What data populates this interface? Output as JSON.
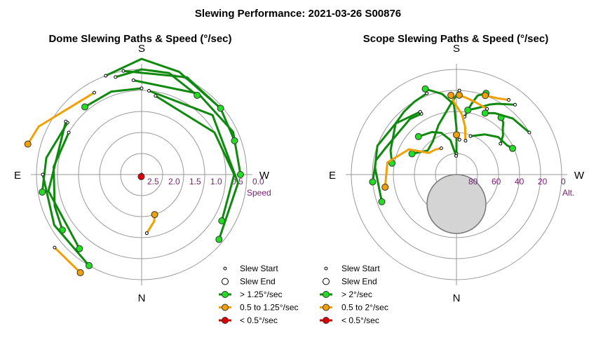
{
  "title": "Slewing Performance: 2021-03-26 S00876",
  "colors": {
    "fast": "#0f8a0f",
    "fast_fill": "#22dd22",
    "mid": "#f0a000",
    "mid_fill": "#f0a000",
    "slow": "#cc0000",
    "slow_fill": "#dd0000",
    "ring": "#999999",
    "tick_label": "#7a1a7a",
    "zenith_fill": "#d4d4d4"
  },
  "chart_data": [
    {
      "type": "polar-paths",
      "title": "Dome Slewing Paths & Speed (°/sec)",
      "compass": {
        "top": "S",
        "bottom": "N",
        "left": "E",
        "right": "W"
      },
      "radial_ticks": [
        "2.5",
        "2.0",
        "1.5",
        "1.0",
        "0.5",
        "0.0"
      ],
      "radial_axis_label": "Speed",
      "legend": [
        {
          "marker": "start",
          "label": "Slew Start"
        },
        {
          "marker": "end",
          "label": "Slew End"
        },
        {
          "marker": "fast",
          "label": "> 1.25°/sec"
        },
        {
          "marker": "mid",
          "label": "0.5 to 1.25°/sec"
        },
        {
          "marker": "slow",
          "label": "< 0.5°/sec"
        }
      ],
      "slews": [
        {
          "speed_class": "fast",
          "points": [
            [
              190,
              2.1
            ],
            [
              240,
              2.0
            ],
            [
              270,
              1.8
            ],
            [
              300,
              1.8
            ]
          ]
        },
        {
          "speed_class": "fast",
          "points": [
            [
              185,
              2.0
            ],
            [
              230,
              1.8
            ],
            [
              275,
              1.7
            ],
            [
              310,
              1.6
            ]
          ]
        },
        {
          "speed_class": "fast",
          "points": [
            [
              175,
              1.75
            ],
            [
              215,
              1.65
            ],
            [
              245,
              1.6
            ],
            [
              270,
              1.65
            ]
          ]
        },
        {
          "speed_class": "fast",
          "points": [
            [
              170,
              1.5
            ],
            [
              205,
              1.45
            ],
            [
              230,
              1.55
            ],
            [
              250,
              1.65
            ]
          ]
        },
        {
          "speed_class": "fast",
          "points": [
            [
              160,
              1.5
            ],
            [
              180,
              1.25
            ],
            [
              200,
              1.4
            ],
            [
              230,
              1.55
            ]
          ]
        },
        {
          "speed_class": "fast",
          "points": [
            [
              165,
              1.6
            ],
            [
              180,
              1.5
            ],
            [
              195,
              1.5
            ],
            [
              215,
              1.7
            ]
          ]
        },
        {
          "speed_class": "fast",
          "points": [
            [
              120,
              2.0
            ],
            [
              95,
              1.9
            ],
            [
              70,
              1.8
            ],
            [
              55,
              1.7
            ]
          ]
        },
        {
          "speed_class": "fast",
          "points": [
            [
              125,
              1.85
            ],
            [
              100,
              1.7
            ],
            [
              80,
              1.6
            ]
          ]
        },
        {
          "speed_class": "fast",
          "points": [
            [
              90,
              1.65
            ],
            [
              60,
              1.6
            ],
            [
              30,
              1.5
            ]
          ]
        },
        {
          "speed_class": "fast",
          "points": [
            [
              125,
              1.8
            ],
            [
              80,
              1.75
            ],
            [
              40,
              1.7
            ]
          ]
        },
        {
          "speed_class": "fast",
          "points": [
            [
              180,
              1.95
            ],
            [
              160,
              1.9
            ],
            [
              140,
              1.9
            ]
          ]
        },
        {
          "speed_class": "mid",
          "points": [
            [
              150,
              1.75
            ],
            [
              115,
              1.3
            ],
            [
              105,
              1.2
            ]
          ]
        },
        {
          "speed_class": "mid",
          "points": [
            [
              50,
              1.3
            ],
            [
              32,
              1.25
            ]
          ]
        },
        {
          "speed_class": "mid",
          "points": [
            [
              355,
              2.6
            ],
            [
              345,
              2.85
            ],
            [
              342,
              3.0
            ]
          ]
        },
        {
          "speed_class": "slow",
          "points": [
            [
              0,
              4.0
            ],
            [
              5,
              3.98
            ],
            [
              10,
              3.95
            ]
          ]
        }
      ]
    },
    {
      "type": "polar-paths",
      "title": "Scope Slewing Paths & Speed (°/sec)",
      "compass": {
        "top": "S",
        "bottom": "N",
        "left": "E",
        "right": "W"
      },
      "radial_ticks": [
        "80",
        "60",
        "40",
        "20",
        "0"
      ],
      "radial_axis_label": "Alt.",
      "legend": [
        {
          "marker": "start",
          "label": "Slew Start"
        },
        {
          "marker": "end",
          "label": "Slew End"
        },
        {
          "marker": "fast",
          "label": "> 2°/sec"
        },
        {
          "marker": "mid",
          "label": "0.5 to 2°/sec"
        },
        {
          "marker": "slow",
          "label": "< 0.5°/sec"
        }
      ],
      "slews": [
        {
          "speed_class": "fast",
          "points": [
            [
              180,
              72
            ],
            [
              180,
              50
            ],
            [
              178,
              30
            ],
            [
              170,
              20
            ],
            [
              160,
              12
            ]
          ]
        },
        {
          "speed_class": "fast",
          "points": [
            [
              182,
              18
            ],
            [
              175,
              30
            ],
            [
              160,
              45
            ],
            [
              145,
              55
            ],
            [
              130,
              58
            ],
            [
              115,
              48
            ]
          ]
        },
        {
          "speed_class": "fast",
          "points": [
            [
              179,
              74
            ],
            [
              170,
              60
            ],
            [
              160,
              52
            ],
            [
              150,
              48
            ],
            [
              135,
              44
            ]
          ]
        },
        {
          "speed_class": "fast",
          "points": [
            [
              150,
              30
            ],
            [
              140,
              28
            ],
            [
              110,
              25
            ],
            [
              100,
              20
            ],
            [
              85,
              18
            ]
          ]
        },
        {
          "speed_class": "fast",
          "points": [
            [
              150,
              28
            ],
            [
              130,
              22
            ],
            [
              110,
              18
            ],
            [
              95,
              20
            ],
            [
              70,
              22
            ]
          ]
        },
        {
          "speed_class": "fast",
          "points": [
            [
              160,
              16
            ],
            [
              150,
              18
            ],
            [
              140,
              20
            ],
            [
              130,
              22
            ],
            [
              110,
              30
            ],
            [
              100,
              34
            ]
          ]
        },
        {
          "speed_class": "fast",
          "points": [
            [
              200,
              55
            ],
            [
              215,
              48
            ],
            [
              228,
              42
            ],
            [
              240,
              40
            ],
            [
              245,
              37
            ]
          ]
        },
        {
          "speed_class": "fast",
          "points": [
            [
              235,
              44
            ],
            [
              230,
              38
            ],
            [
              225,
              34
            ],
            [
              222,
              30
            ],
            [
              218,
              28
            ]
          ]
        },
        {
          "speed_class": "fast",
          "points": [
            [
              188,
              40
            ],
            [
              192,
              28
            ],
            [
              195,
              20
            ],
            [
              200,
              16
            ]
          ]
        },
        {
          "speed_class": "fast",
          "points": [
            [
              220,
              12
            ],
            [
              210,
              20
            ],
            [
              205,
              24
            ],
            [
              198,
              30
            ],
            [
              190,
              34
            ]
          ]
        },
        {
          "speed_class": "fast",
          "points": [
            [
              240,
              18
            ],
            [
              225,
              22
            ],
            [
              212,
              28
            ],
            [
              205,
              32
            ]
          ]
        },
        {
          "speed_class": "mid",
          "points": [
            [
              150,
              64
            ],
            [
              140,
              62
            ],
            [
              128,
              60
            ],
            [
              118,
              44
            ],
            [
              100,
              30
            ],
            [
              80,
              28
            ]
          ]
        },
        {
          "speed_class": "mid",
          "points": [
            [
              195,
              60
            ],
            [
              190,
              48
            ],
            [
              185,
              38
            ],
            [
              178,
              28
            ],
            [
              176,
              22
            ]
          ]
        },
        {
          "speed_class": "mid",
          "points": [
            [
              205,
              28
            ],
            [
              195,
              26
            ],
            [
              188,
              24
            ],
            [
              182,
              22
            ]
          ]
        },
        {
          "speed_class": "mid",
          "points": [
            [
              215,
              12
            ],
            [
              208,
              16
            ],
            [
              200,
              18
            ]
          ]
        },
        {
          "speed_class": "mid",
          "points": [
            [
              185,
              60
            ],
            [
              180,
              56
            ]
          ]
        }
      ]
    }
  ]
}
